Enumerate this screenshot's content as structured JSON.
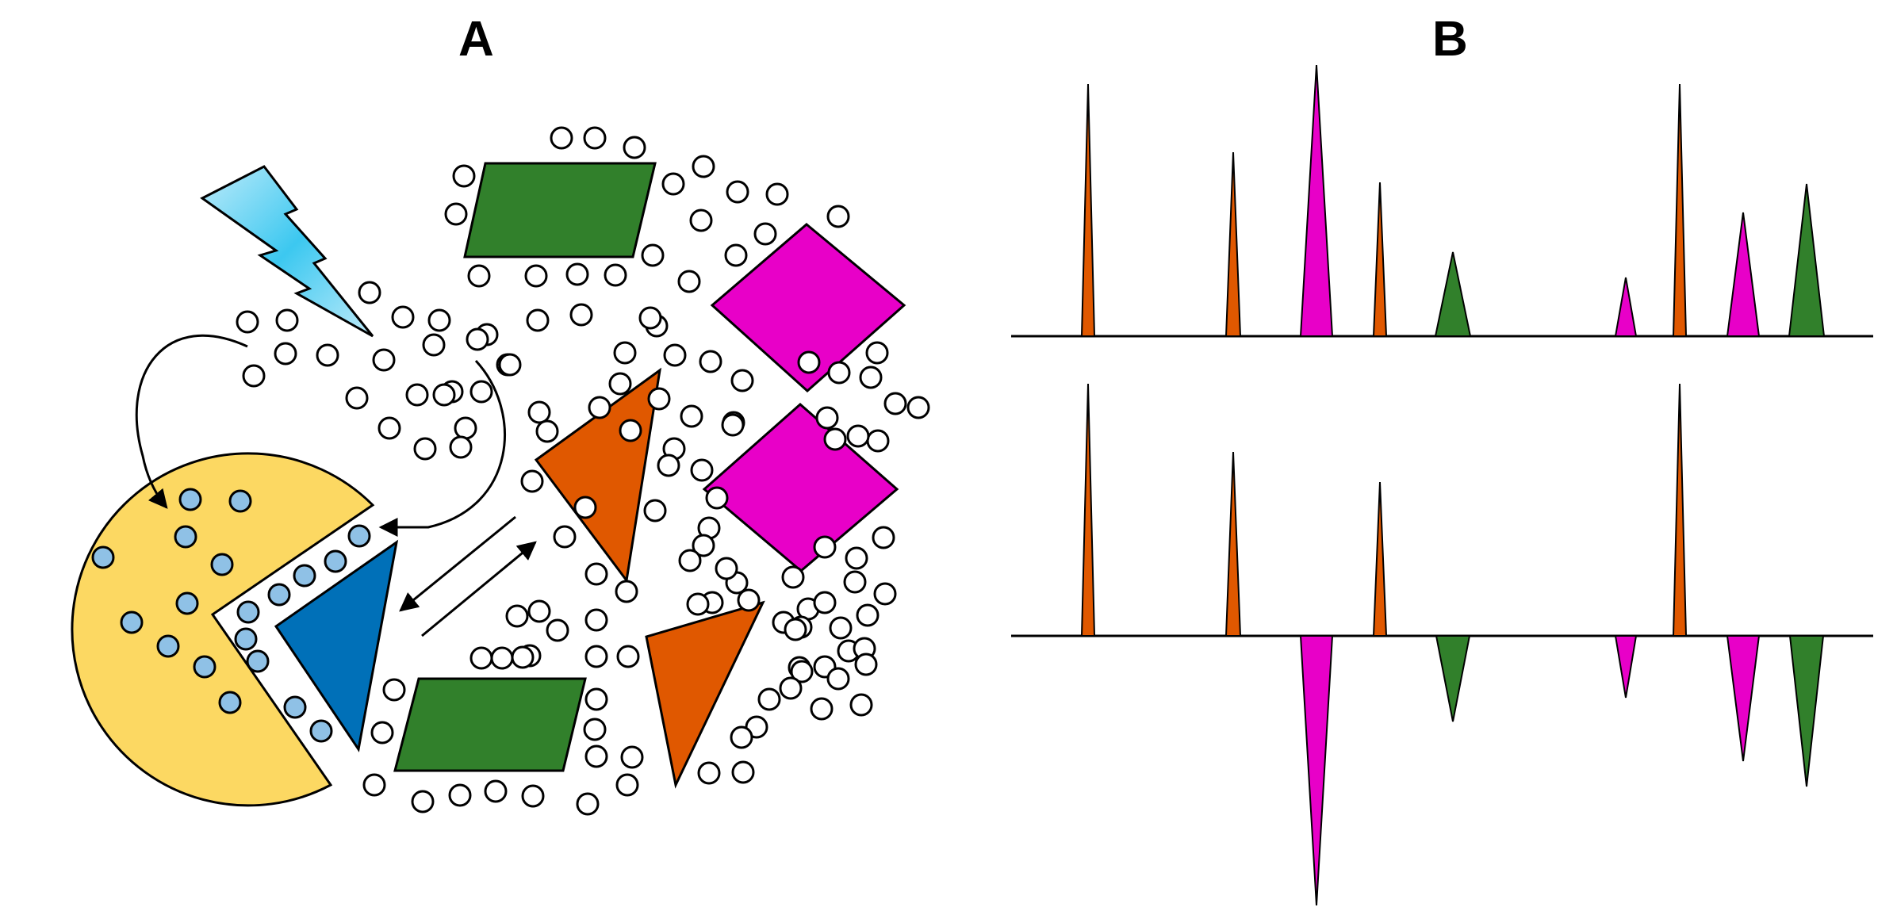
{
  "panels": {
    "a": {
      "label": "A"
    },
    "b": {
      "label": "B"
    }
  },
  "colors": {
    "yellow": "#FCD862",
    "blue": "#0070B8",
    "light_blue": "#8FC1E6",
    "green": "#31802B",
    "magenta": "#E800C8",
    "orange": "#E05800",
    "bolt_light": "#BEEBFA",
    "bolt_dark": "#3CC8F0"
  },
  "panel_a_elements": [
    "lightning-bolt",
    "pacman-receptor",
    "blue-triangle-ligand",
    "green-parallelogram",
    "magenta-diamond",
    "orange-triangle",
    "small-molecules"
  ],
  "spectra": [
    {
      "name": "",
      "peaks": [
        {
          "x": 1372,
          "h": 318,
          "w": 16,
          "color": "orange"
        },
        {
          "x": 1555,
          "h": 232,
          "w": 18,
          "color": "orange"
        },
        {
          "x": 1660,
          "h": 342,
          "w": 40,
          "color": "magenta"
        },
        {
          "x": 1740,
          "h": 194,
          "w": 16,
          "color": "orange"
        },
        {
          "x": 1832,
          "h": 106,
          "w": 44,
          "color": "green"
        },
        {
          "x": 2050,
          "h": 74,
          "w": 26,
          "color": "magenta"
        },
        {
          "x": 2118,
          "h": 318,
          "w": 16,
          "color": "orange"
        },
        {
          "x": 2198,
          "h": 156,
          "w": 40,
          "color": "magenta"
        },
        {
          "x": 2278,
          "h": 192,
          "w": 44,
          "color": "green"
        }
      ]
    },
    {
      "name": "",
      "peaks": [
        {
          "x": 1372,
          "h": 318,
          "w": 16,
          "color": "orange"
        },
        {
          "x": 1555,
          "h": 232,
          "w": 18,
          "color": "orange"
        },
        {
          "x": 1660,
          "h": -340,
          "w": 40,
          "color": "magenta"
        },
        {
          "x": 1740,
          "h": 194,
          "w": 16,
          "color": "orange"
        },
        {
          "x": 1832,
          "h": -108,
          "w": 42,
          "color": "green"
        },
        {
          "x": 2050,
          "h": -78,
          "w": 26,
          "color": "magenta"
        },
        {
          "x": 2118,
          "h": 318,
          "w": 16,
          "color": "orange"
        },
        {
          "x": 2198,
          "h": -158,
          "w": 40,
          "color": "magenta"
        },
        {
          "x": 2278,
          "h": -190,
          "w": 42,
          "color": "green"
        }
      ]
    }
  ]
}
